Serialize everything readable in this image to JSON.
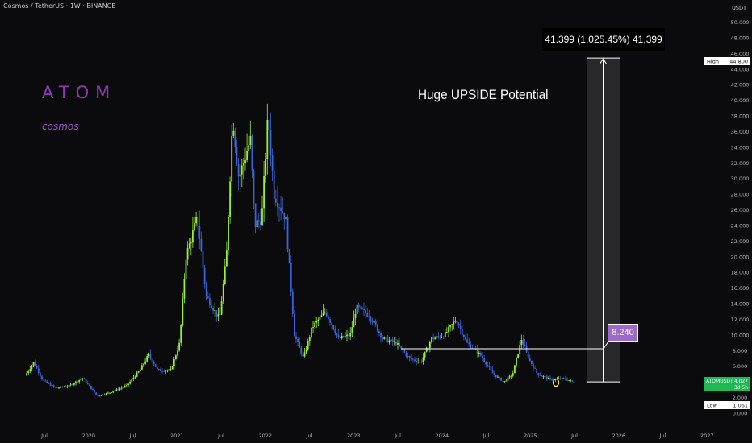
{
  "header": {
    "title": "Cosmos / TetherUS · 1W · BINANCE"
  },
  "overlay": {
    "brand_title": "ATOM",
    "brand_subtitle": "cosmos",
    "headline": "Huge UPSIDE Potential",
    "range_label": "41.399 (1,025.45%) 41,399",
    "level_label": "8.240"
  },
  "colors": {
    "background": "#0b0b0e",
    "up": "#9bee35",
    "down": "#3c63d8",
    "brand": "#8e3ab4",
    "price_tag": "#1db954",
    "level_box": "#9d6bc7"
  },
  "price_axis": {
    "currency": "USDT",
    "ticks": [
      "50.000",
      "48.000",
      "46.000",
      "44.000",
      "42.000",
      "40.000",
      "38.000",
      "36.000",
      "34.000",
      "32.000",
      "30.000",
      "28.000",
      "26.000",
      "24.000",
      "22.000",
      "20.000",
      "18.000",
      "16.000",
      "14.000",
      "12.000",
      "10.000",
      "8.000",
      "6.000",
      "4.000",
      "2.000",
      "0.000"
    ],
    "high_label": "High",
    "high_value": "44.800",
    "low_label": "Low",
    "low_value": "1.061",
    "current_symbol": "ATOMUSDT",
    "current_value": "4.027",
    "current_countdown": "3d 5h"
  },
  "time_axis": {
    "labels": [
      "Jul",
      "2020",
      "Jul",
      "2021",
      "Jul",
      "2022",
      "Jul",
      "2023",
      "Jul",
      "2024",
      "Jul",
      "2025",
      "Jul",
      "2026",
      "Jul",
      "2027"
    ]
  },
  "chart_data": {
    "type": "candlestick",
    "symbol": "ATOMUSDT",
    "interval": "1W",
    "y_range": [
      0,
      50
    ],
    "high": 44.8,
    "low": 1.061,
    "current_price": 4.027,
    "level": 8.24,
    "projection": {
      "from": 4.0,
      "to": 45.4
    },
    "x_range_years": [
      2019.25,
      2027.15
    ],
    "anchors": [
      [
        2019.3,
        4.8
      ],
      [
        2019.4,
        6.5
      ],
      [
        2019.5,
        4.2
      ],
      [
        2019.65,
        3.2
      ],
      [
        2019.8,
        3.5
      ],
      [
        2019.95,
        4.5
      ],
      [
        2020.12,
        2.2
      ],
      [
        2020.25,
        2.6
      ],
      [
        2020.45,
        3.5
      ],
      [
        2020.6,
        5.5
      ],
      [
        2020.7,
        7.5
      ],
      [
        2020.8,
        5.5
      ],
      [
        2020.95,
        5.5
      ],
      [
        2021.05,
        9.0
      ],
      [
        2021.12,
        20.0
      ],
      [
        2021.25,
        25.0
      ],
      [
        2021.35,
        15.0
      ],
      [
        2021.5,
        12.0
      ],
      [
        2021.58,
        20.0
      ],
      [
        2021.65,
        38.0
      ],
      [
        2021.72,
        30.0
      ],
      [
        2021.85,
        35.0
      ],
      [
        2021.9,
        24.0
      ],
      [
        2021.98,
        25.0
      ],
      [
        2022.05,
        38.0
      ],
      [
        2022.12,
        28.0
      ],
      [
        2022.25,
        25.0
      ],
      [
        2022.35,
        10.0
      ],
      [
        2022.45,
        7.0
      ],
      [
        2022.55,
        11.0
      ],
      [
        2022.7,
        13.0
      ],
      [
        2022.85,
        9.5
      ],
      [
        2022.98,
        10.0
      ],
      [
        2023.05,
        13.5
      ],
      [
        2023.2,
        12.5
      ],
      [
        2023.35,
        9.5
      ],
      [
        2023.5,
        9.0
      ],
      [
        2023.65,
        7.0
      ],
      [
        2023.78,
        6.5
      ],
      [
        2023.9,
        9.5
      ],
      [
        2024.05,
        10.0
      ],
      [
        2024.18,
        12.0
      ],
      [
        2024.3,
        9.0
      ],
      [
        2024.45,
        7.5
      ],
      [
        2024.6,
        5.0
      ],
      [
        2024.72,
        4.0
      ],
      [
        2024.82,
        5.0
      ],
      [
        2024.92,
        9.5
      ],
      [
        2025.0,
        7.0
      ],
      [
        2025.1,
        5.0
      ],
      [
        2025.25,
        4.3
      ],
      [
        2025.4,
        4.4
      ],
      [
        2025.5,
        4.03
      ]
    ]
  }
}
